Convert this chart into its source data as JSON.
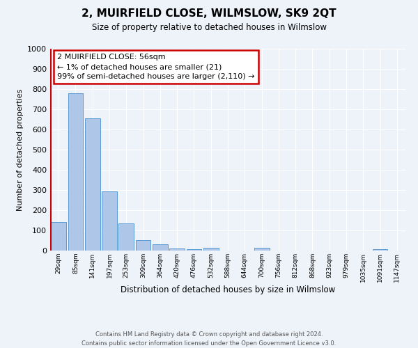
{
  "title": "2, MUIRFIELD CLOSE, WILMSLOW, SK9 2QT",
  "subtitle": "Size of property relative to detached houses in Wilmslow",
  "xlabel": "Distribution of detached houses by size in Wilmslow",
  "ylabel": "Number of detached properties",
  "bin_labels": [
    "29sqm",
    "85sqm",
    "141sqm",
    "197sqm",
    "253sqm",
    "309sqm",
    "364sqm",
    "420sqm",
    "476sqm",
    "532sqm",
    "588sqm",
    "644sqm",
    "700sqm",
    "756sqm",
    "812sqm",
    "868sqm",
    "923sqm",
    "979sqm",
    "1035sqm",
    "1091sqm",
    "1147sqm"
  ],
  "bar_values": [
    140,
    780,
    655,
    293,
    135,
    53,
    30,
    12,
    8,
    14,
    0,
    0,
    14,
    0,
    0,
    0,
    0,
    0,
    0,
    7,
    0
  ],
  "bar_color": "#aec6e8",
  "bar_edge_color": "#5b9bd5",
  "ylim": [
    0,
    1000
  ],
  "yticks": [
    0,
    100,
    200,
    300,
    400,
    500,
    600,
    700,
    800,
    900,
    1000
  ],
  "vline_color": "#cc0000",
  "annotation_box_text": "2 MUIRFIELD CLOSE: 56sqm\n← 1% of detached houses are smaller (21)\n99% of semi-detached houses are larger (2,110) →",
  "annotation_box_color": "#cc0000",
  "footer_line1": "Contains HM Land Registry data © Crown copyright and database right 2024.",
  "footer_line2": "Contains public sector information licensed under the Open Government Licence v3.0.",
  "background_color": "#eef2f9",
  "grid_color": "#ffffff"
}
